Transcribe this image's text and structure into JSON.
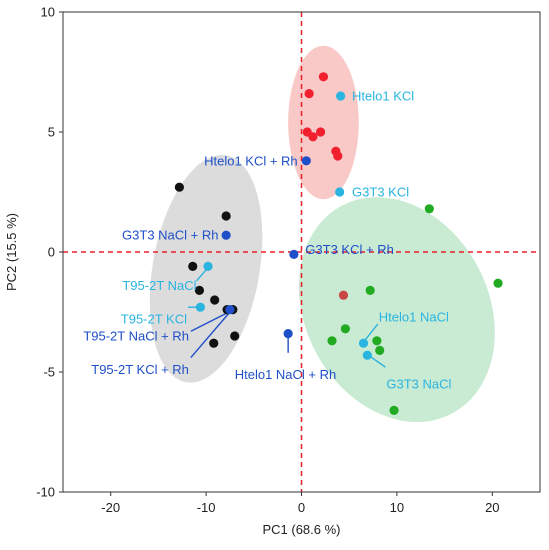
{
  "chart_data": {
    "type": "scatter",
    "xlabel": "PC1  (68.6 %)",
    "ylabel": "PC2  (15.5 %)",
    "xlim": [
      -25,
      25
    ],
    "ylim": [
      -10,
      10
    ],
    "xticks": [
      "-20",
      "-10",
      "0",
      "10",
      "20"
    ],
    "yticks": [
      "-10",
      "-5",
      "0",
      "5",
      "10"
    ],
    "grid": false,
    "reference_lines": {
      "x": 0,
      "y": 0,
      "color": "#e8202a",
      "style": "dashed"
    },
    "colors": {
      "red": "#f0202e",
      "black": "#111111",
      "green": "#22aa22",
      "light_blue": "#2ab4e0",
      "dark_blue": "#1f4fc8",
      "brown_red": "#c84646",
      "gray_ellipse": "#dcdcdc",
      "pink_ellipse": "#f9c9c7",
      "green_ellipse": "#c9ebd3"
    },
    "ellipses": [
      {
        "group": "gray",
        "cx": -10,
        "cy": -0.7,
        "rx": 5.6,
        "ry": 4.8,
        "rotate_deg": 10
      },
      {
        "group": "pink",
        "cx": 2.3,
        "cy": 5.4,
        "rx": 3.7,
        "ry": 3.2,
        "rotate_deg": 0
      },
      {
        "group": "green",
        "cx": 10,
        "cy": -2.4,
        "rx": 9.6,
        "ry": 4.9,
        "rotate_deg": -28
      }
    ],
    "groups": [
      {
        "color": "red",
        "points": [
          [
            0.8,
            6.6
          ],
          [
            2.3,
            7.3
          ],
          [
            0.6,
            5.0
          ],
          [
            1.2,
            4.8
          ],
          [
            2.0,
            5.0
          ],
          [
            3.6,
            4.2
          ],
          [
            3.8,
            4.0
          ]
        ]
      },
      {
        "color": "black",
        "points": [
          [
            -12.8,
            2.7
          ],
          [
            -7.9,
            1.5
          ],
          [
            -11.4,
            -0.6
          ],
          [
            -10.7,
            -1.6
          ],
          [
            -9.1,
            -2.0
          ],
          [
            -7.8,
            -2.4
          ],
          [
            -7.2,
            -2.4
          ],
          [
            -7.0,
            -3.5
          ],
          [
            -9.2,
            -3.8
          ]
        ]
      },
      {
        "color": "green",
        "points": [
          [
            13.4,
            1.8
          ],
          [
            20.6,
            -1.3
          ],
          [
            7.2,
            -1.6
          ],
          [
            4.6,
            -3.2
          ],
          [
            3.2,
            -3.7
          ],
          [
            7.9,
            -3.7
          ],
          [
            8.2,
            -4.1
          ],
          [
            9.7,
            -6.6
          ]
        ]
      },
      {
        "color": "brown_red",
        "points": [
          [
            4.4,
            -1.8
          ]
        ]
      },
      {
        "color": "light_blue",
        "points": [
          [
            4.1,
            6.5
          ],
          [
            4.0,
            2.5
          ],
          [
            -9.8,
            -0.6
          ],
          [
            -10.6,
            -2.3
          ],
          [
            6.5,
            -3.8
          ],
          [
            6.9,
            -4.3
          ]
        ]
      },
      {
        "color": "dark_blue",
        "points": [
          [
            0.5,
            3.8
          ],
          [
            -7.9,
            0.7
          ],
          [
            -0.8,
            -0.1
          ],
          [
            -7.5,
            -2.4
          ],
          [
            -1.4,
            -3.4
          ]
        ]
      }
    ],
    "annotations": [
      {
        "text": "Htelo1 KCl",
        "color": "light_blue",
        "x": 5.3,
        "y": 6.5,
        "anchor": "start",
        "line": null
      },
      {
        "text": "Htelo1 KCl + Rh",
        "color": "dark_blue",
        "x": -0.4,
        "y": 3.8,
        "anchor": "end",
        "line": null
      },
      {
        "text": "G3T3 KCl",
        "color": "light_blue",
        "x": 5.3,
        "y": 2.5,
        "anchor": "start",
        "line": null
      },
      {
        "text": "G3T3 NaCl + Rh",
        "color": "dark_blue",
        "x": -8.7,
        "y": 0.7,
        "anchor": "end",
        "line": null
      },
      {
        "text": "G3T3 KCl + Rh",
        "color": "dark_blue",
        "x": 0.4,
        "y": 0.1,
        "anchor": "start",
        "line": null
      },
      {
        "text": "T95-2T NaCl",
        "color": "light_blue",
        "x": -11.0,
        "y": -1.4,
        "anchor": "end",
        "line": [
          [
            -11.0,
            -1.2
          ],
          [
            -9.9,
            -0.7
          ]
        ]
      },
      {
        "text": "T95-2T KCl",
        "color": "light_blue",
        "x": -12.0,
        "y": -2.8,
        "anchor": "end",
        "line": [
          [
            -11.9,
            -2.3
          ],
          [
            -10.7,
            -2.3
          ]
        ]
      },
      {
        "text": "T95-2T NaCl + Rh",
        "color": "dark_blue",
        "x": -11.8,
        "y": -3.5,
        "anchor": "end",
        "line": [
          [
            -11.6,
            -3.3
          ],
          [
            -7.6,
            -2.5
          ]
        ]
      },
      {
        "text": "T95-2T KCl + Rh",
        "color": "dark_blue",
        "x": -11.8,
        "y": -4.9,
        "anchor": "end",
        "line": [
          [
            -11.6,
            -4.4
          ],
          [
            -7.5,
            -2.5
          ]
        ]
      },
      {
        "text": "Htelo1 NaCl",
        "color": "light_blue",
        "x": 8.1,
        "y": -2.7,
        "anchor": "start",
        "line": [
          [
            8.0,
            -3.0
          ],
          [
            6.6,
            -3.7
          ]
        ]
      },
      {
        "text": "Htelo1 NaCl + Rh",
        "color": "dark_blue",
        "x": -7.0,
        "y": -5.1,
        "anchor": "start",
        "line": [
          [
            -1.4,
            -3.5
          ],
          [
            -1.4,
            -4.2
          ]
        ]
      },
      {
        "text": "G3T3 NaCl",
        "color": "light_blue",
        "x": 8.9,
        "y": -5.5,
        "anchor": "start",
        "line": [
          [
            8.8,
            -4.8
          ],
          [
            7.0,
            -4.3
          ]
        ]
      }
    ]
  }
}
